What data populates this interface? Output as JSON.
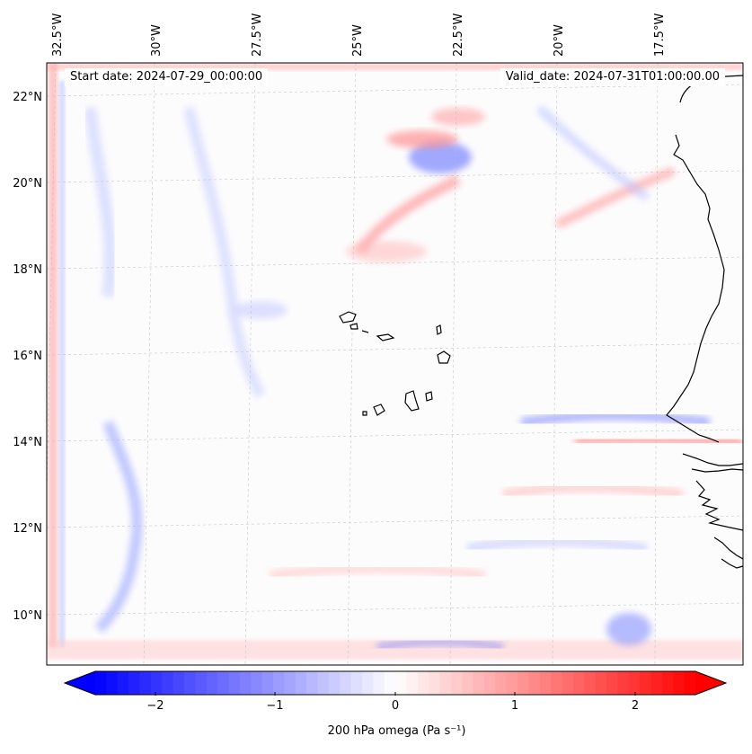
{
  "header": {
    "start_label": "Start date: 2024-07-29_00:00:00",
    "valid_label": "Valid_date: 2024-07-31T01:00:00.00"
  },
  "map": {
    "lon_ticks": [
      "32.5°W",
      "30°W",
      "27.5°W",
      "25°W",
      "22.5°W",
      "20°W",
      "17.5°W"
    ],
    "lat_ticks": [
      "22°N",
      "20°N",
      "18°N",
      "16°N",
      "14°N",
      "12°N",
      "10°N"
    ],
    "features": [
      "cape-verde-islands",
      "west-african-coastline"
    ],
    "field": "200 hPa omega",
    "colormap": "bwr",
    "negative_color": "#0000ff",
    "neutral_color": "#ffffff",
    "positive_color": "#ff0000",
    "gridlines": true
  },
  "colorbar": {
    "title": "200 hPa omega (Pa s⁻¹)",
    "ticks": [
      "−2",
      "−1",
      "0",
      "1",
      "2"
    ],
    "vmin": -2.7,
    "vmax": 2.7,
    "extend": "both"
  }
}
